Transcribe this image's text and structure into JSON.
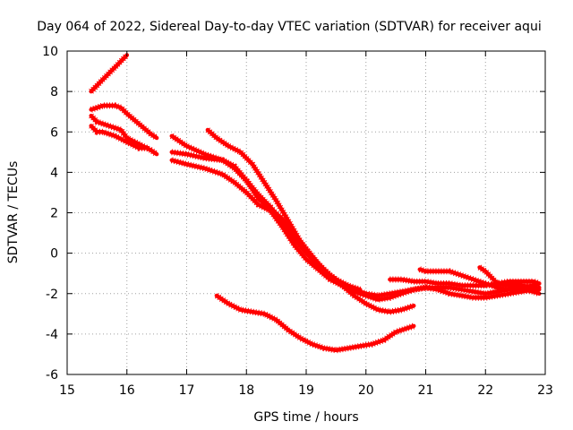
{
  "chart_data": {
    "type": "line",
    "title": "Day 064 of 2022, Sidereal Day-to-day VTEC variation (SDTVAR) for receiver aqui",
    "xlabel": "GPS time / hours",
    "ylabel": "SDTVAR / TECUs",
    "xlim": [
      15,
      23
    ],
    "ylim": [
      -6,
      10
    ],
    "xticks": [
      15,
      16,
      17,
      18,
      19,
      20,
      21,
      22,
      23
    ],
    "yticks": [
      -6,
      -4,
      -2,
      0,
      2,
      4,
      6,
      8,
      10
    ],
    "grid": true,
    "line_color": "#ff0000",
    "series": [
      {
        "name": "s1",
        "x": [
          15.4,
          15.5,
          15.6,
          15.7,
          15.8,
          15.9,
          16.0
        ],
        "y": [
          8.0,
          8.3,
          8.6,
          8.9,
          9.2,
          9.5,
          9.8
        ]
      },
      {
        "name": "s2",
        "x": [
          15.4,
          15.5,
          15.6,
          15.8,
          15.9,
          16.0,
          16.2,
          16.4,
          16.5
        ],
        "y": [
          7.1,
          7.2,
          7.3,
          7.3,
          7.2,
          6.9,
          6.4,
          5.9,
          5.7
        ]
      },
      {
        "name": "s3",
        "x": [
          15.4,
          15.5,
          15.7,
          15.9,
          16.0,
          16.2,
          16.4,
          16.5
        ],
        "y": [
          6.8,
          6.5,
          6.3,
          6.1,
          5.7,
          5.4,
          5.1,
          4.9
        ]
      },
      {
        "name": "s4",
        "x": [
          15.4,
          15.5,
          15.6,
          15.8,
          16.0,
          16.2,
          16.35
        ],
        "y": [
          6.3,
          6.0,
          6.0,
          5.8,
          5.5,
          5.2,
          5.2
        ]
      },
      {
        "name": "s5",
        "x": [
          16.75,
          17.0,
          17.3,
          17.6,
          17.8,
          18.0,
          18.2,
          18.4,
          18.6,
          18.8,
          19.0,
          19.2,
          19.4,
          19.6,
          19.8,
          20.0,
          20.2,
          20.4,
          20.6,
          20.8,
          21.0,
          21.2,
          21.4,
          21.6,
          21.8,
          22.0,
          22.2,
          22.4,
          22.6,
          22.8,
          22.9
        ],
        "y": [
          5.8,
          5.3,
          4.9,
          4.6,
          4.2,
          3.6,
          2.9,
          2.3,
          1.5,
          0.7,
          0.0,
          -0.6,
          -1.1,
          -1.5,
          -1.8,
          -2.0,
          -2.1,
          -2.0,
          -1.9,
          -1.8,
          -1.7,
          -1.7,
          -1.7,
          -1.8,
          -1.9,
          -2.0,
          -1.9,
          -1.8,
          -1.7,
          -1.6,
          -1.5
        ]
      },
      {
        "name": "s6",
        "x": [
          16.75,
          17.0,
          17.3,
          17.6,
          17.8,
          18.0,
          18.2,
          18.4,
          18.6,
          18.8,
          19.0,
          19.2,
          19.4,
          19.6,
          19.8,
          20.0,
          20.2,
          20.4,
          20.6,
          20.8,
          21.0,
          21.2,
          21.4,
          21.6,
          21.8,
          22.0,
          22.2,
          22.4,
          22.6,
          22.8,
          22.9
        ],
        "y": [
          4.6,
          4.4,
          4.2,
          3.9,
          3.5,
          3.0,
          2.4,
          2.1,
          1.3,
          0.4,
          -0.3,
          -0.8,
          -1.3,
          -1.6,
          -1.9,
          -2.1,
          -2.3,
          -2.2,
          -2.0,
          -1.8,
          -1.7,
          -1.8,
          -2.0,
          -2.1,
          -2.2,
          -2.2,
          -2.1,
          -2.0,
          -1.9,
          -1.8,
          -1.7
        ]
      },
      {
        "name": "s7",
        "x": [
          16.75,
          17.0,
          17.3,
          17.6,
          17.8,
          18.0,
          18.2,
          18.4,
          18.6,
          18.8,
          19.0,
          19.2,
          19.4,
          19.6,
          19.8,
          20.0,
          20.2,
          20.4,
          20.6,
          20.8
        ],
        "y": [
          5.0,
          4.9,
          4.7,
          4.6,
          4.3,
          3.6,
          2.7,
          2.2,
          1.7,
          0.9,
          0.2,
          -0.5,
          -1.1,
          -1.6,
          -2.1,
          -2.5,
          -2.8,
          -2.9,
          -2.8,
          -2.6
        ]
      },
      {
        "name": "s8",
        "x": [
          17.35,
          17.5,
          17.7,
          17.9,
          18.1,
          18.3,
          18.5,
          18.7,
          18.9,
          19.1,
          19.3,
          19.5,
          19.7,
          19.9
        ],
        "y": [
          6.1,
          5.7,
          5.3,
          5.0,
          4.4,
          3.5,
          2.6,
          1.6,
          0.6,
          -0.2,
          -0.9,
          -1.3,
          -1.6,
          -1.8
        ]
      },
      {
        "name": "s9",
        "x": [
          20.4,
          20.6,
          20.8,
          21.0,
          21.2,
          21.4,
          21.6,
          21.8,
          22.0,
          22.2,
          22.4,
          22.6,
          22.8,
          22.9
        ],
        "y": [
          -1.3,
          -1.3,
          -1.4,
          -1.4,
          -1.5,
          -1.5,
          -1.6,
          -1.6,
          -1.6,
          -1.5,
          -1.4,
          -1.4,
          -1.4,
          -1.5
        ]
      },
      {
        "name": "s10",
        "x": [
          20.9,
          21.0,
          21.2,
          21.4,
          21.6,
          21.8,
          22.0,
          22.2,
          22.4,
          22.6,
          22.8,
          22.9
        ],
        "y": [
          -0.8,
          -0.9,
          -0.9,
          -0.9,
          -1.1,
          -1.3,
          -1.5,
          -1.7,
          -1.8,
          -1.8,
          -1.9,
          -2.0
        ]
      },
      {
        "name": "s11",
        "x": [
          21.9,
          22.0,
          22.1,
          22.2,
          22.4,
          22.6,
          22.8,
          22.9
        ],
        "y": [
          -0.7,
          -0.9,
          -1.2,
          -1.5,
          -1.6,
          -1.6,
          -1.7,
          -1.8
        ]
      },
      {
        "name": "s12",
        "x": [
          17.5,
          17.7,
          17.9,
          18.1,
          18.3,
          18.5,
          18.7,
          18.9,
          19.1,
          19.3,
          19.5,
          19.7,
          19.9,
          20.1,
          20.3,
          20.5,
          20.7,
          20.8
        ],
        "y": [
          -2.1,
          -2.5,
          -2.8,
          -2.9,
          -3.0,
          -3.3,
          -3.8,
          -4.2,
          -4.5,
          -4.7,
          -4.8,
          -4.7,
          -4.6,
          -4.5,
          -4.3,
          -3.9,
          -3.7,
          -3.6
        ]
      }
    ]
  }
}
